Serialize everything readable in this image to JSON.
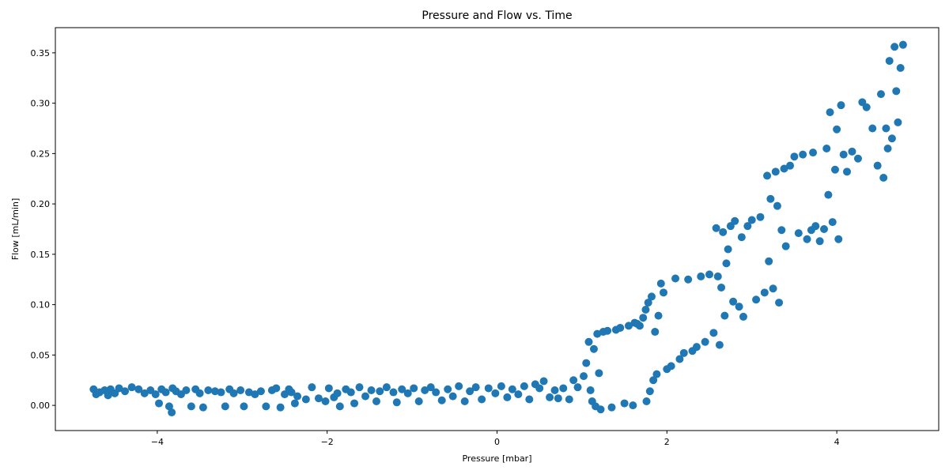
{
  "chart_data": {
    "type": "scatter",
    "title": "Pressure and Flow vs. Time",
    "xlabel": "Pressure [mbar]",
    "ylabel": "Flow [mL/min]",
    "xlim": [
      -5.2,
      5.2
    ],
    "ylim": [
      -0.025,
      0.375
    ],
    "xticks": [
      -4,
      -2,
      0,
      2,
      4
    ],
    "xtick_labels": [
      "−4",
      "−2",
      "0",
      "2",
      "4"
    ],
    "yticks": [
      0.0,
      0.05,
      0.1,
      0.15,
      0.2,
      0.25,
      0.3,
      0.35
    ],
    "ytick_labels": [
      "0.00",
      "0.05",
      "0.10",
      "0.15",
      "0.20",
      "0.25",
      "0.30",
      "0.35"
    ],
    "grid": false,
    "color": "#1f77b4",
    "series": [
      {
        "points": [
          [
            -4.75,
            0.016
          ],
          [
            -4.72,
            0.011
          ],
          [
            -4.68,
            0.013
          ],
          [
            -4.62,
            0.015
          ],
          [
            -4.58,
            0.01
          ],
          [
            -4.55,
            0.016
          ],
          [
            -4.5,
            0.012
          ],
          [
            -4.45,
            0.017
          ],
          [
            -4.38,
            0.014
          ],
          [
            -4.3,
            0.018
          ],
          [
            -4.22,
            0.016
          ],
          [
            -4.15,
            0.012
          ],
          [
            -4.08,
            0.015
          ],
          [
            -4.02,
            0.011
          ],
          [
            -3.98,
            0.002
          ],
          [
            -3.95,
            0.016
          ],
          [
            -3.9,
            0.013
          ],
          [
            -3.86,
            -0.001
          ],
          [
            -3.83,
            -0.007
          ],
          [
            -3.82,
            0.017
          ],
          [
            -3.78,
            0.014
          ],
          [
            -3.72,
            0.011
          ],
          [
            -3.66,
            0.015
          ],
          [
            -3.6,
            -0.001
          ],
          [
            -3.55,
            0.016
          ],
          [
            -3.5,
            0.012
          ],
          [
            -3.46,
            -0.002
          ],
          [
            -3.4,
            0.015
          ],
          [
            -3.32,
            0.014
          ],
          [
            -3.25,
            0.013
          ],
          [
            -3.2,
            -0.001
          ],
          [
            -3.15,
            0.016
          ],
          [
            -3.1,
            0.012
          ],
          [
            -3.02,
            0.015
          ],
          [
            -2.98,
            -0.001
          ],
          [
            -2.92,
            0.013
          ],
          [
            -2.85,
            0.011
          ],
          [
            -2.78,
            0.014
          ],
          [
            -2.72,
            -0.001
          ],
          [
            -2.65,
            0.015
          ],
          [
            -2.6,
            0.017
          ],
          [
            -2.55,
            -0.002
          ],
          [
            -2.5,
            0.011
          ],
          [
            -2.45,
            0.016
          ],
          [
            -2.42,
            0.013
          ],
          [
            -2.38,
            0.002
          ],
          [
            -2.35,
            0.009
          ],
          [
            -2.25,
            0.006
          ],
          [
            -2.18,
            0.018
          ],
          [
            -2.1,
            0.007
          ],
          [
            -2.02,
            0.004
          ],
          [
            -1.98,
            0.017
          ],
          [
            -1.92,
            0.008
          ],
          [
            -1.88,
            0.012
          ],
          [
            -1.85,
            -0.001
          ],
          [
            -1.78,
            0.016
          ],
          [
            -1.72,
            0.013
          ],
          [
            -1.68,
            0.002
          ],
          [
            -1.62,
            0.018
          ],
          [
            -1.55,
            0.009
          ],
          [
            -1.48,
            0.015
          ],
          [
            -1.42,
            0.004
          ],
          [
            -1.38,
            0.014
          ],
          [
            -1.3,
            0.018
          ],
          [
            -1.22,
            0.013
          ],
          [
            -1.18,
            0.003
          ],
          [
            -1.12,
            0.016
          ],
          [
            -1.05,
            0.012
          ],
          [
            -0.98,
            0.017
          ],
          [
            -0.92,
            0.004
          ],
          [
            -0.85,
            0.015
          ],
          [
            -0.78,
            0.018
          ],
          [
            -0.72,
            0.013
          ],
          [
            -0.65,
            0.005
          ],
          [
            -0.58,
            0.016
          ],
          [
            -0.52,
            0.009
          ],
          [
            -0.45,
            0.019
          ],
          [
            -0.38,
            0.004
          ],
          [
            -0.32,
            0.014
          ],
          [
            -0.25,
            0.018
          ],
          [
            -0.18,
            0.006
          ],
          [
            -0.1,
            0.017
          ],
          [
            -0.02,
            0.012
          ],
          [
            0.05,
            0.019
          ],
          [
            0.12,
            0.008
          ],
          [
            0.18,
            0.016
          ],
          [
            0.25,
            0.011
          ],
          [
            0.32,
            0.019
          ],
          [
            0.38,
            0.006
          ],
          [
            0.45,
            0.021
          ],
          [
            0.5,
            0.017
          ],
          [
            0.55,
            0.024
          ],
          [
            0.62,
            0.008
          ],
          [
            0.68,
            0.015
          ],
          [
            0.72,
            0.007
          ],
          [
            0.78,
            0.017
          ],
          [
            0.85,
            0.006
          ],
          [
            0.9,
            0.025
          ],
          [
            0.95,
            0.018
          ],
          [
            1.02,
            0.029
          ],
          [
            1.05,
            0.042
          ],
          [
            1.08,
            0.063
          ],
          [
            1.1,
            0.015
          ],
          [
            1.12,
            0.004
          ],
          [
            1.14,
            0.056
          ],
          [
            1.16,
            -0.001
          ],
          [
            1.18,
            0.071
          ],
          [
            1.2,
            0.032
          ],
          [
            1.22,
            -0.004
          ],
          [
            1.25,
            0.073
          ],
          [
            1.3,
            0.074
          ],
          [
            1.35,
            -0.002
          ],
          [
            1.4,
            0.075
          ],
          [
            1.45,
            0.077
          ],
          [
            1.5,
            0.002
          ],
          [
            1.55,
            0.079
          ],
          [
            1.6,
            0.0
          ],
          [
            1.62,
            0.082
          ],
          [
            1.65,
            0.081
          ],
          [
            1.68,
            0.079
          ],
          [
            1.72,
            0.087
          ],
          [
            1.75,
            0.095
          ],
          [
            1.76,
            0.004
          ],
          [
            1.78,
            0.102
          ],
          [
            1.8,
            0.014
          ],
          [
            1.82,
            0.108
          ],
          [
            1.84,
            0.025
          ],
          [
            1.86,
            0.073
          ],
          [
            1.88,
            0.031
          ],
          [
            1.9,
            0.089
          ],
          [
            1.93,
            0.121
          ],
          [
            1.96,
            0.112
          ],
          [
            2.0,
            0.036
          ],
          [
            2.05,
            0.039
          ],
          [
            2.1,
            0.126
          ],
          [
            2.15,
            0.046
          ],
          [
            2.2,
            0.052
          ],
          [
            2.25,
            0.125
          ],
          [
            2.3,
            0.054
          ],
          [
            2.35,
            0.058
          ],
          [
            2.4,
            0.128
          ],
          [
            2.45,
            0.063
          ],
          [
            2.5,
            0.13
          ],
          [
            2.55,
            0.072
          ],
          [
            2.58,
            0.176
          ],
          [
            2.6,
            0.128
          ],
          [
            2.62,
            0.06
          ],
          [
            2.64,
            0.117
          ],
          [
            2.66,
            0.172
          ],
          [
            2.68,
            0.089
          ],
          [
            2.7,
            0.141
          ],
          [
            2.72,
            0.155
          ],
          [
            2.75,
            0.178
          ],
          [
            2.78,
            0.103
          ],
          [
            2.8,
            0.183
          ],
          [
            2.85,
            0.098
          ],
          [
            2.88,
            0.167
          ],
          [
            2.9,
            0.088
          ],
          [
            2.95,
            0.178
          ],
          [
            3.0,
            0.184
          ],
          [
            3.05,
            0.105
          ],
          [
            3.1,
            0.187
          ],
          [
            3.15,
            0.112
          ],
          [
            3.18,
            0.228
          ],
          [
            3.2,
            0.143
          ],
          [
            3.22,
            0.205
          ],
          [
            3.25,
            0.116
          ],
          [
            3.28,
            0.232
          ],
          [
            3.3,
            0.198
          ],
          [
            3.32,
            0.102
          ],
          [
            3.35,
            0.174
          ],
          [
            3.38,
            0.235
          ],
          [
            3.4,
            0.158
          ],
          [
            3.45,
            0.238
          ],
          [
            3.5,
            0.247
          ],
          [
            3.55,
            0.171
          ],
          [
            3.6,
            0.249
          ],
          [
            3.65,
            0.165
          ],
          [
            3.7,
            0.174
          ],
          [
            3.72,
            0.251
          ],
          [
            3.75,
            0.178
          ],
          [
            3.8,
            0.163
          ],
          [
            3.85,
            0.175
          ],
          [
            3.88,
            0.255
          ],
          [
            3.9,
            0.209
          ],
          [
            3.92,
            0.291
          ],
          [
            3.95,
            0.182
          ],
          [
            3.98,
            0.234
          ],
          [
            4.0,
            0.274
          ],
          [
            4.02,
            0.165
          ],
          [
            4.05,
            0.298
          ],
          [
            4.08,
            0.249
          ],
          [
            4.12,
            0.232
          ],
          [
            4.18,
            0.252
          ],
          [
            4.25,
            0.245
          ],
          [
            4.3,
            0.301
          ],
          [
            4.35,
            0.296
          ],
          [
            4.42,
            0.275
          ],
          [
            4.48,
            0.238
          ],
          [
            4.52,
            0.309
          ],
          [
            4.55,
            0.226
          ],
          [
            4.58,
            0.275
          ],
          [
            4.6,
            0.255
          ],
          [
            4.62,
            0.342
          ],
          [
            4.65,
            0.265
          ],
          [
            4.68,
            0.356
          ],
          [
            4.7,
            0.312
          ],
          [
            4.72,
            0.281
          ],
          [
            4.75,
            0.335
          ],
          [
            4.78,
            0.358
          ]
        ]
      }
    ]
  }
}
